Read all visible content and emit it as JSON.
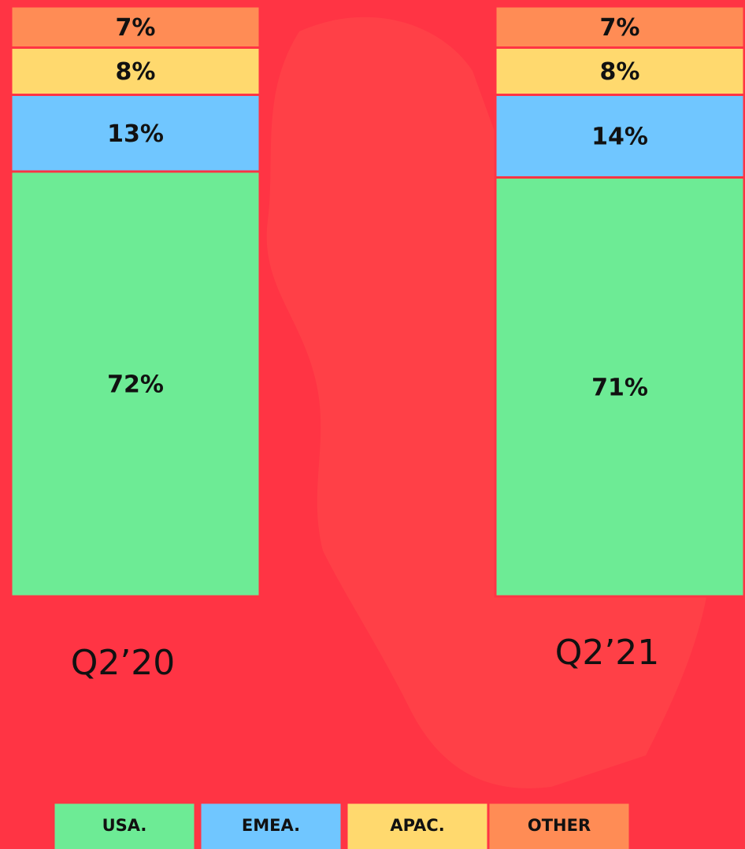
{
  "chart_data": {
    "type": "bar",
    "stacked": true,
    "categories": [
      "Q2’20",
      "Q2’21"
    ],
    "series": [
      {
        "name": "USA.",
        "color": "#6deb95",
        "values": [
          72,
          71
        ],
        "value_labels": [
          "72%",
          "71%"
        ]
      },
      {
        "name": "EMEA.",
        "color": "#70c6ff",
        "values": [
          13,
          14
        ],
        "value_labels": [
          "13%",
          "14%"
        ]
      },
      {
        "name": "APAC.",
        "color": "#ffd96e",
        "values": [
          8,
          8
        ],
        "value_labels": [
          "8%",
          "8%"
        ]
      },
      {
        "name": "OTHER",
        "color": "#ff8c55",
        "values": [
          7,
          7
        ],
        "value_labels": [
          "7%",
          "7%"
        ]
      }
    ]
  }
}
